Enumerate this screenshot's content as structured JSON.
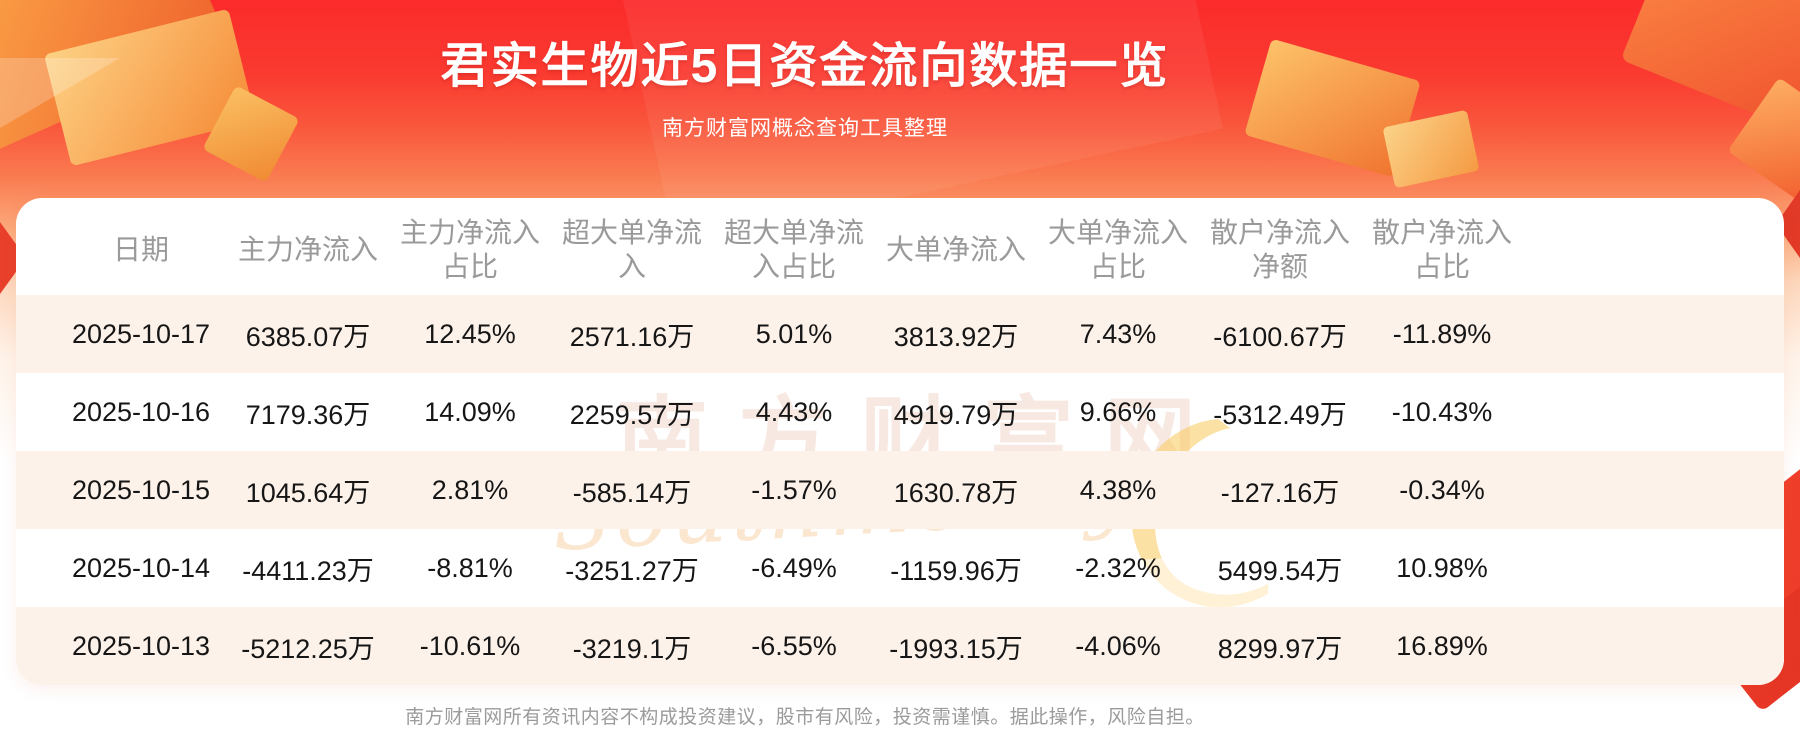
{
  "page": {
    "title": "君实生物近5日资金流向数据一览",
    "subtitle": "南方财富网概念查询工具整理",
    "footer": "南方财富网所有资讯内容不构成投资建议，股市有风险，投资需谨慎。据此操作，风险自担。"
  },
  "watermark": {
    "cjk": "南方财富网",
    "script": "Southmoney.com"
  },
  "colors": {
    "banner_red": "#fb2b2b",
    "row_alt": "#fdf2ea",
    "header_text": "#9a9a9a",
    "body_text": "#161616",
    "footer_text": "#9b9b9b"
  },
  "table": {
    "header_lines": [
      [
        "日期",
        ""
      ],
      [
        "主力净流入",
        ""
      ],
      [
        "主力净流入",
        "占比"
      ],
      [
        "超大单净流",
        "入"
      ],
      [
        "超大单净流",
        "入占比"
      ],
      [
        "大单净流入",
        ""
      ],
      [
        "大单净流入",
        "占比"
      ],
      [
        "散户净流入",
        "净额"
      ],
      [
        "散户净流入",
        "占比"
      ]
    ]
  },
  "chart_data": {
    "type": "table",
    "title": "君实生物近5日资金流向数据一览",
    "columns": [
      "日期",
      "主力净流入",
      "主力净流入占比",
      "超大单净流入",
      "超大单净流入占比",
      "大单净流入",
      "大单净流入占比",
      "散户净流入净额",
      "散户净流入占比"
    ],
    "rows": [
      [
        "2025-10-17",
        "6385.07万",
        "12.45%",
        "2571.16万",
        "5.01%",
        "3813.92万",
        "7.43%",
        "-6100.67万",
        "-11.89%"
      ],
      [
        "2025-10-16",
        "7179.36万",
        "14.09%",
        "2259.57万",
        "4.43%",
        "4919.79万",
        "9.66%",
        "-5312.49万",
        "-10.43%"
      ],
      [
        "2025-10-15",
        "1045.64万",
        "2.81%",
        "-585.14万",
        "-1.57%",
        "1630.78万",
        "4.38%",
        "-127.16万",
        "-0.34%"
      ],
      [
        "2025-10-14",
        "-4411.23万",
        "-8.81%",
        "-3251.27万",
        "-6.49%",
        "-1159.96万",
        "-2.32%",
        "5499.54万",
        "10.98%"
      ],
      [
        "2025-10-13",
        "-5212.25万",
        "-10.61%",
        "-3219.1万",
        "-6.55%",
        "-1993.15万",
        "-4.06%",
        "8299.97万",
        "16.89%"
      ]
    ]
  }
}
